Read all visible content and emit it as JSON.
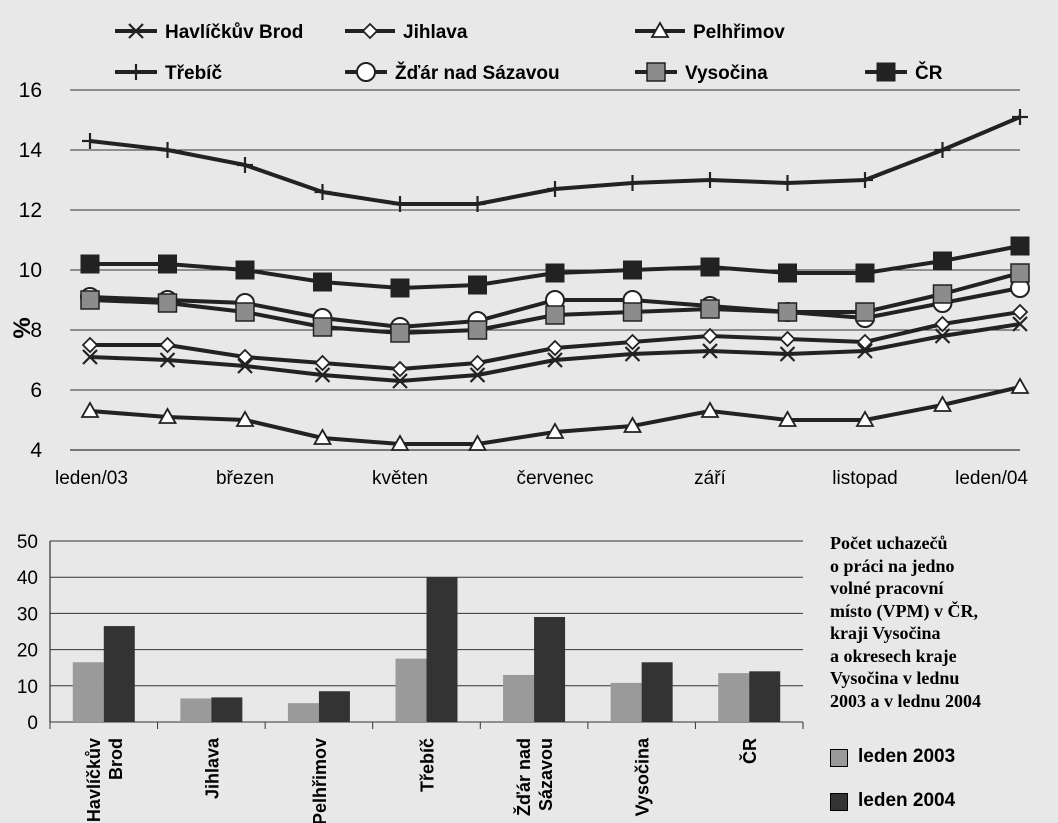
{
  "colors": {
    "background": "#e8e8e8",
    "line": "#222222",
    "bar_2003": "#9a9a9a",
    "bar_2004": "#333333",
    "marker_gray": "#8c8c8c",
    "marker_black": "#222222",
    "grid": "#333333"
  },
  "chart_data": [
    {
      "type": "line",
      "title": "",
      "xlabel": "",
      "ylabel": "%",
      "ylim": [
        4,
        16
      ],
      "yticks": [
        "4",
        "6",
        "8",
        "10",
        "12",
        "14",
        "16"
      ],
      "grid": true,
      "x_tick_labels": [
        "leden/03",
        "březen",
        "květen",
        "červenec",
        "září",
        "listopad",
        "leden/04"
      ],
      "legend_position": "top",
      "series": [
        {
          "name": "Havlíčkův Brod",
          "marker": "x-mark",
          "values": [
            7.1,
            7.0,
            6.8,
            6.5,
            6.3,
            6.5,
            7.0,
            7.2,
            7.3,
            7.2,
            7.3,
            7.8,
            8.2
          ]
        },
        {
          "name": "Jihlava",
          "marker": "diamond",
          "values": [
            7.5,
            7.5,
            7.1,
            6.9,
            6.7,
            6.9,
            7.4,
            7.6,
            7.8,
            7.7,
            7.6,
            8.2,
            8.6
          ]
        },
        {
          "name": "Pelhřimov",
          "marker": "triangle",
          "values": [
            5.3,
            5.1,
            5.0,
            4.4,
            4.2,
            4.2,
            4.6,
            4.8,
            5.3,
            5.0,
            5.0,
            5.5,
            6.1
          ]
        },
        {
          "name": "Třebíč",
          "marker": "plus",
          "values": [
            14.3,
            14.0,
            13.5,
            12.6,
            12.2,
            12.2,
            12.7,
            12.9,
            13.0,
            12.9,
            13.0,
            14.0,
            15.1
          ]
        },
        {
          "name": "Žďár nad Sázavou",
          "marker": "circle",
          "values": [
            9.1,
            9.0,
            8.9,
            8.4,
            8.1,
            8.3,
            9.0,
            9.0,
            8.8,
            8.6,
            8.4,
            8.9,
            9.4
          ]
        },
        {
          "name": "Vysočina",
          "marker": "gray-square",
          "values": [
            9.0,
            8.9,
            8.6,
            8.1,
            7.9,
            8.0,
            8.5,
            8.6,
            8.7,
            8.6,
            8.6,
            9.2,
            9.9
          ]
        },
        {
          "name": "ČR",
          "marker": "black-square",
          "values": [
            10.2,
            10.2,
            10.0,
            9.6,
            9.4,
            9.5,
            9.9,
            10.0,
            10.1,
            9.9,
            9.9,
            10.3,
            10.8
          ]
        }
      ]
    },
    {
      "type": "bar",
      "title": "Počet uchazečů o práci na jedno volné pracovní místo (VPM) v ČR, kraji Vysočina a okresech kraje Vysočina v lednu 2003 a v lednu 2004",
      "title_lines": [
        "Počet uchazečů",
        "o práci na jedno",
        "volné pracovní",
        "místo (VPM) v ČR,",
        "kraji Vysočina",
        "a okresech kraje",
        "Vysočina v lednu",
        "2003 a v lednu 2004"
      ],
      "xlabel": "",
      "ylabel": "",
      "ylim": [
        0,
        50
      ],
      "yticks": [
        "0",
        "10",
        "20",
        "30",
        "40",
        "50"
      ],
      "grid": true,
      "legend_position": "right",
      "categories": [
        [
          "Havlíčkův",
          "Brod"
        ],
        [
          "Jihlava"
        ],
        [
          "Pelhřimov"
        ],
        [
          "Třebíč"
        ],
        [
          "Žďár nad",
          "Sázavou"
        ],
        [
          "Vysočina"
        ],
        [
          "ČR"
        ]
      ],
      "series": [
        {
          "name": "leden 2003",
          "values": [
            16.5,
            6.5,
            5.2,
            17.5,
            13.0,
            10.8,
            13.5
          ]
        },
        {
          "name": "leden 2004",
          "values": [
            26.5,
            6.8,
            8.5,
            40.0,
            29.0,
            16.5,
            14.0
          ]
        }
      ]
    }
  ]
}
